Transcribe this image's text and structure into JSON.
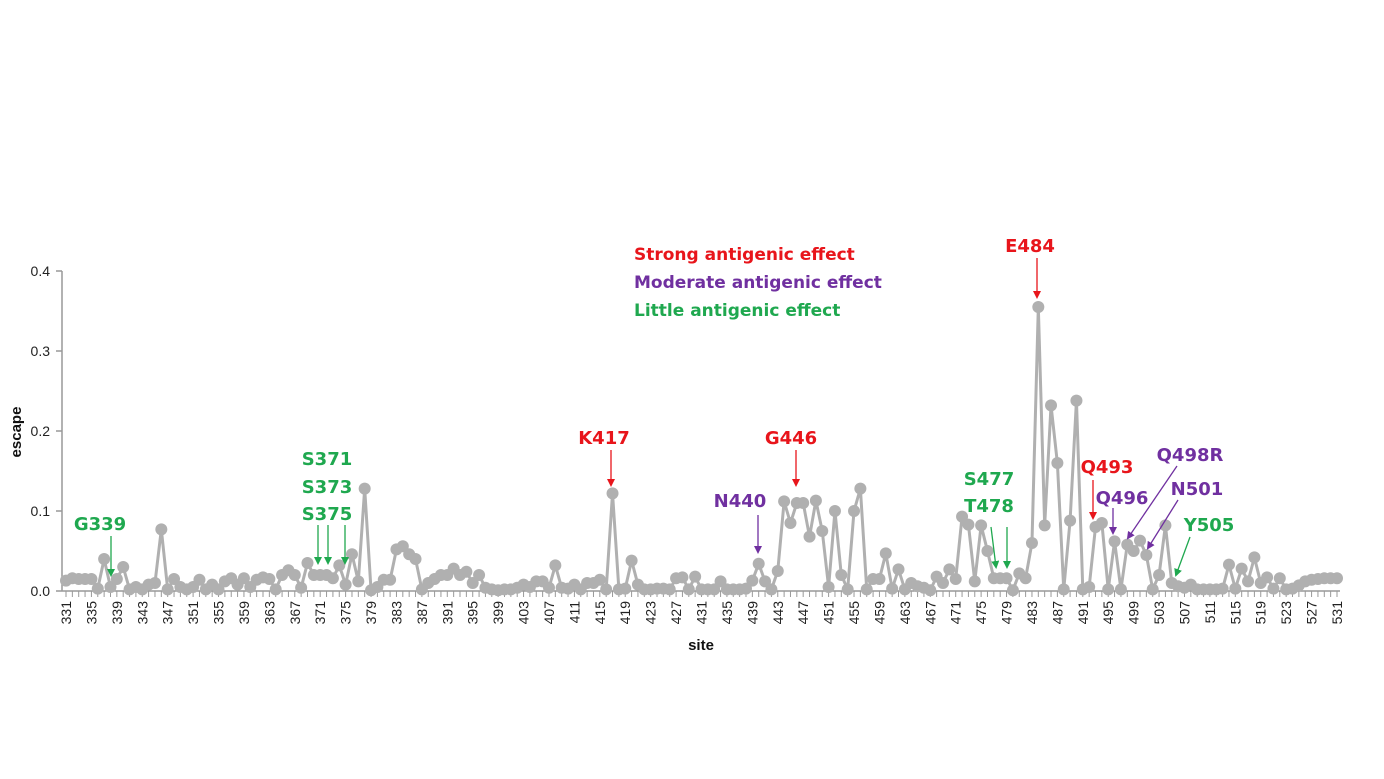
{
  "chart_data": {
    "type": "line",
    "title": "",
    "xlabel": "site",
    "ylabel": "escape",
    "ylim": [
      0,
      0.4
    ],
    "yticks": [
      "0.0",
      "0.1",
      "0.2",
      "0.3",
      "0.4"
    ],
    "x_start": 331,
    "x_end": 531,
    "x_tick_step": 4,
    "grid": false,
    "series": [
      {
        "name": "escape",
        "color": "#b0b0b0",
        "values": [
          0.013,
          0.016,
          0.015,
          0.015,
          0.015,
          0.003,
          0.04,
          0.005,
          0.015,
          0.03,
          0.002,
          0.005,
          0.002,
          0.008,
          0.01,
          0.077,
          0.002,
          0.015,
          0.005,
          0.002,
          0.005,
          0.014,
          0.002,
          0.008,
          0.002,
          0.012,
          0.016,
          0.008,
          0.016,
          0.005,
          0.014,
          0.017,
          0.015,
          0.002,
          0.02,
          0.026,
          0.02,
          0.004,
          0.035,
          0.02,
          0.02,
          0.02,
          0.016,
          0.032,
          0.008,
          0.046,
          0.012,
          0.128,
          0.001,
          0.005,
          0.014,
          0.014,
          0.052,
          0.056,
          0.046,
          0.04,
          0.002,
          0.01,
          0.015,
          0.02,
          0.02,
          0.028,
          0.02,
          0.024,
          0.01,
          0.02,
          0.004,
          0.002,
          0.001,
          0.002,
          0.002,
          0.004,
          0.008,
          0.005,
          0.012,
          0.012,
          0.004,
          0.032,
          0.004,
          0.003,
          0.008,
          0.002,
          0.01,
          0.01,
          0.014,
          0.002,
          0.122,
          0.002,
          0.003,
          0.038,
          0.008,
          0.002,
          0.002,
          0.003,
          0.003,
          0.002,
          0.016,
          0.017,
          0.002,
          0.018,
          0.002,
          0.002,
          0.002,
          0.012,
          0.002,
          0.002,
          0.002,
          0.003,
          0.013,
          0.034,
          0.012,
          0.002,
          0.025,
          0.112,
          0.085,
          0.11,
          0.11,
          0.068,
          0.113,
          0.075,
          0.005,
          0.1,
          0.02,
          0.002,
          0.1,
          0.128,
          0.002,
          0.015,
          0.015,
          0.047,
          0.003,
          0.027,
          0.002,
          0.01,
          0.006,
          0.004,
          0.001,
          0.018,
          0.01,
          0.027,
          0.015,
          0.093,
          0.083,
          0.012,
          0.082,
          0.05,
          0.016,
          0.016,
          0.016,
          0.001,
          0.022,
          0.016,
          0.06,
          0.355,
          0.082,
          0.232,
          0.16,
          0.002,
          0.088,
          0.238,
          0.002,
          0.005,
          0.08,
          0.085,
          0.002,
          0.062,
          0.002,
          0.058,
          0.05,
          0.063,
          0.045,
          0.002,
          0.02,
          0.082,
          0.01,
          0.006,
          0.004,
          0.008,
          0.002,
          0.002,
          0.002,
          0.002,
          0.003,
          0.033,
          0.003,
          0.028,
          0.012,
          0.042,
          0.01,
          0.017,
          0.003,
          0.016,
          0.002,
          0.003,
          0.007,
          0.012,
          0.014,
          0.015,
          0.016,
          0.016,
          0.016
        ]
      }
    ],
    "legend": [
      {
        "label": "Strong antigenic effect",
        "effect": "strong",
        "color": "#e8151b"
      },
      {
        "label": "Moderate antigenic effect",
        "effect": "moderate",
        "color": "#7030a0"
      },
      {
        "label": "Little antigenic effect",
        "effect": "little",
        "color": "#1fa84f"
      }
    ],
    "annotations": [
      {
        "text": "G339",
        "site": 339,
        "effect": "little"
      },
      {
        "text": "S371",
        "site": 371,
        "effect": "little"
      },
      {
        "text": "S373",
        "site": 373,
        "effect": "little"
      },
      {
        "text": "S375",
        "site": 375,
        "effect": "little"
      },
      {
        "text": "K417",
        "site": 417,
        "effect": "strong"
      },
      {
        "text": "N440",
        "site": 440,
        "effect": "moderate"
      },
      {
        "text": "G446",
        "site": 446,
        "effect": "strong"
      },
      {
        "text": "S477",
        "site": 477,
        "effect": "little"
      },
      {
        "text": "T478",
        "site": 478,
        "effect": "little"
      },
      {
        "text": "E484",
        "site": 484,
        "effect": "strong"
      },
      {
        "text": "Q493",
        "site": 493,
        "effect": "strong"
      },
      {
        "text": "Q496",
        "site": 496,
        "effect": "moderate"
      },
      {
        "text": "Q498R",
        "site": 498,
        "effect": "moderate"
      },
      {
        "text": "N501",
        "site": 501,
        "effect": "moderate"
      },
      {
        "text": "Y505",
        "site": 505,
        "effect": "little"
      }
    ]
  }
}
